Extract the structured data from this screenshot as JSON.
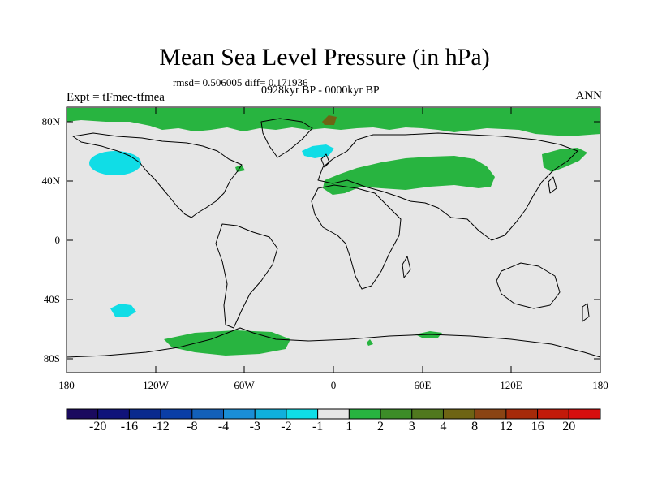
{
  "header": {
    "title": "Mean Sea Level Pressure (in hPa)",
    "stats": "rmsd= 0.506005 diff= 0.171936",
    "period": "0928kyr BP - 0000kyr BP",
    "experiment": "Expt = tFmec-tfmea",
    "season": "ANN"
  },
  "axes": {
    "lat_labels": [
      "80N",
      "40N",
      "0",
      "40S",
      "80S"
    ],
    "lon_labels": [
      "180",
      "120W",
      "60W",
      "0",
      "60E",
      "120E",
      "180"
    ]
  },
  "colorbar": {
    "labels": [
      "-20",
      "-16",
      "-12",
      "-8",
      "-4",
      "-3",
      "-2",
      "-1",
      "1",
      "2",
      "3",
      "4",
      "8",
      "12",
      "16",
      "20"
    ],
    "colors": [
      "#1a0a5e",
      "#10137a",
      "#0a2a8e",
      "#0a3ea6",
      "#1360b8",
      "#1a8ed6",
      "#10b0dc",
      "#10dde6",
      "#e6e6e6",
      "#28b440",
      "#3c8c28",
      "#50781e",
      "#6e6414",
      "#8a4414",
      "#a62a0a",
      "#c21a0a",
      "#d60e0e"
    ]
  },
  "colors": {
    "background_field": "#e6e6e6",
    "positive_anomaly": "#28b440",
    "negative_anomaly": "#10dde6",
    "strong_positive": "#6e6414"
  }
}
